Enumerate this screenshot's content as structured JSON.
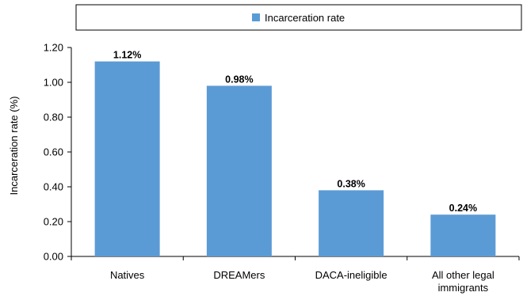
{
  "chart_data": {
    "type": "bar",
    "title": "",
    "xlabel": "",
    "ylabel": "Incarceration rate (%)",
    "categories": [
      "Natives",
      "DREAMers",
      "DACA-ineligible",
      "All other legal|immigrants"
    ],
    "series": [
      {
        "name": "Incarceration rate",
        "values": [
          1.12,
          0.98,
          0.38,
          0.24
        ],
        "labels": [
          "1.12%",
          "0.98%",
          "0.38%",
          "0.24%"
        ],
        "color": "#5b9bd5"
      }
    ],
    "yticks": [
      "0.00",
      "0.20",
      "0.40",
      "0.60",
      "0.80",
      "1.00",
      "1.20"
    ],
    "ylim": [
      0,
      1.2
    ],
    "grid": false,
    "legend": "top"
  }
}
